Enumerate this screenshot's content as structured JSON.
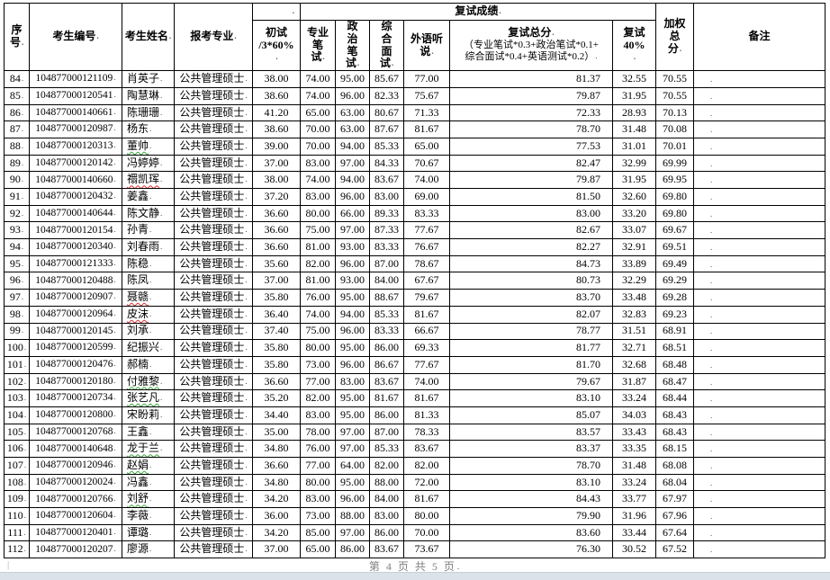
{
  "header": {
    "serial": "序号",
    "candidate_id": "考生编号",
    "candidate_name": "考生姓名",
    "major": "报考专业",
    "retest_group": "复试成绩",
    "initial_line1": "初试",
    "initial_line2": "/3*60%",
    "professional_written": "专业笔试",
    "political_written": "政治笔试",
    "comprehensive_interview": "综合面试",
    "foreign_listening": "外语听说",
    "retest_total_title": "复试总分",
    "retest_total_formula_line1": "（专业笔试*0.3+政治笔试*0.1+",
    "retest_total_formula_line2": "综合面试*0.4+英语测试*0.2）",
    "retest40_line1": "复试",
    "retest40_line2": "40%",
    "weighted_total": "加权总分",
    "remark": "备注"
  },
  "rows": [
    {
      "no": "84",
      "id": "104877000121109",
      "name": "肖英子",
      "name_underline": "",
      "major": "公共管理硕士",
      "initial": "38.00",
      "professional": "74.00",
      "political": "95.00",
      "interview": "85.67",
      "foreign": "77.00",
      "retest_total": "81.37",
      "retest40": "32.55",
      "weighted": "70.55",
      "remark": ""
    },
    {
      "no": "85",
      "id": "104877000120541",
      "name": "陶慧琳",
      "name_underline": "",
      "major": "公共管理硕士",
      "initial": "38.60",
      "professional": "74.00",
      "political": "96.00",
      "interview": "82.33",
      "foreign": "75.67",
      "retest_total": "79.87",
      "retest40": "31.95",
      "weighted": "70.55",
      "remark": ""
    },
    {
      "no": "86",
      "id": "104877000140661",
      "name": "陈珊珊",
      "name_underline": "",
      "major": "公共管理硕士",
      "initial": "41.20",
      "professional": "65.00",
      "political": "63.00",
      "interview": "80.67",
      "foreign": "71.33",
      "retest_total": "72.33",
      "retest40": "28.93",
      "weighted": "70.13",
      "remark": ""
    },
    {
      "no": "87",
      "id": "104877000120987",
      "name": "杨东",
      "name_underline": "",
      "major": "公共管理硕士",
      "initial": "38.60",
      "professional": "70.00",
      "political": "63.00",
      "interview": "87.67",
      "foreign": "81.67",
      "retest_total": "78.70",
      "retest40": "31.48",
      "weighted": "70.08",
      "remark": ""
    },
    {
      "no": "88",
      "id": "104877000120313",
      "name": "董帅",
      "name_underline": "green",
      "major": "公共管理硕士",
      "initial": "39.00",
      "professional": "70.00",
      "political": "94.00",
      "interview": "85.33",
      "foreign": "65.00",
      "retest_total": "77.53",
      "retest40": "31.01",
      "weighted": "70.01",
      "remark": ""
    },
    {
      "no": "89",
      "id": "104877000120142",
      "name": "冯婷婷",
      "name_underline": "",
      "major": "公共管理硕士",
      "initial": "37.00",
      "professional": "83.00",
      "political": "97.00",
      "interview": "84.33",
      "foreign": "70.67",
      "retest_total": "82.47",
      "retest40": "32.99",
      "weighted": "69.99",
      "remark": ""
    },
    {
      "no": "90",
      "id": "104877000140660",
      "name": "禤凯珲",
      "name_underline": "red",
      "major": "公共管理硕士",
      "initial": "38.00",
      "professional": "74.00",
      "political": "94.00",
      "interview": "83.67",
      "foreign": "74.00",
      "retest_total": "79.87",
      "retest40": "31.95",
      "weighted": "69.95",
      "remark": ""
    },
    {
      "no": "91",
      "id": "104877000120432",
      "name": "姜鑫",
      "name_underline": "",
      "major": "公共管理硕士",
      "initial": "37.20",
      "professional": "83.00",
      "political": "96.00",
      "interview": "83.00",
      "foreign": "69.00",
      "retest_total": "81.50",
      "retest40": "32.60",
      "weighted": "69.80",
      "remark": ""
    },
    {
      "no": "92",
      "id": "104877000140644",
      "name": "陈文静",
      "name_underline": "",
      "major": "公共管理硕士",
      "initial": "36.60",
      "professional": "80.00",
      "political": "66.00",
      "interview": "89.33",
      "foreign": "83.33",
      "retest_total": "83.00",
      "retest40": "33.20",
      "weighted": "69.80",
      "remark": ""
    },
    {
      "no": "93",
      "id": "104877000120154",
      "name": "孙青",
      "name_underline": "",
      "major": "公共管理硕士",
      "initial": "36.60",
      "professional": "75.00",
      "political": "97.00",
      "interview": "87.33",
      "foreign": "77.67",
      "retest_total": "82.67",
      "retest40": "33.07",
      "weighted": "69.67",
      "remark": ""
    },
    {
      "no": "94",
      "id": "104877000120340",
      "name": "刘春雨",
      "name_underline": "",
      "major": "公共管理硕士",
      "initial": "36.60",
      "professional": "81.00",
      "political": "93.00",
      "interview": "83.33",
      "foreign": "76.67",
      "retest_total": "82.27",
      "retest40": "32.91",
      "weighted": "69.51",
      "remark": ""
    },
    {
      "no": "95",
      "id": "104877000121333",
      "name": "陈稳",
      "name_underline": "",
      "major": "公共管理硕士",
      "initial": "35.60",
      "professional": "82.00",
      "political": "96.00",
      "interview": "87.00",
      "foreign": "78.67",
      "retest_total": "84.73",
      "retest40": "33.89",
      "weighted": "69.49",
      "remark": ""
    },
    {
      "no": "96",
      "id": "104877000120488",
      "name": "陈凤",
      "name_underline": "",
      "major": "公共管理硕士",
      "initial": "37.00",
      "professional": "81.00",
      "political": "93.00",
      "interview": "84.00",
      "foreign": "67.67",
      "retest_total": "80.73",
      "retest40": "32.29",
      "weighted": "69.29",
      "remark": ""
    },
    {
      "no": "97",
      "id": "104877000120907",
      "name": "聂赣",
      "name_underline": "red",
      "major": "公共管理硕士",
      "initial": "35.80",
      "professional": "76.00",
      "political": "95.00",
      "interview": "88.67",
      "foreign": "79.67",
      "retest_total": "83.70",
      "retest40": "33.48",
      "weighted": "69.28",
      "remark": ""
    },
    {
      "no": "98",
      "id": "104877000120964",
      "name": "皮沫",
      "name_underline": "red",
      "major": "公共管理硕士",
      "initial": "36.40",
      "professional": "74.00",
      "political": "94.00",
      "interview": "85.33",
      "foreign": "81.67",
      "retest_total": "82.07",
      "retest40": "32.83",
      "weighted": "69.23",
      "remark": ""
    },
    {
      "no": "99",
      "id": "104877000120145",
      "name": "刘承",
      "name_underline": "",
      "major": "公共管理硕士",
      "initial": "37.40",
      "professional": "75.00",
      "political": "96.00",
      "interview": "83.33",
      "foreign": "66.67",
      "retest_total": "78.77",
      "retest40": "31.51",
      "weighted": "68.91",
      "remark": ""
    },
    {
      "no": "100",
      "id": "104877000120599",
      "name": "纪振兴",
      "name_underline": "",
      "major": "公共管理硕士",
      "initial": "35.80",
      "professional": "80.00",
      "political": "95.00",
      "interview": "86.00",
      "foreign": "69.33",
      "retest_total": "81.77",
      "retest40": "32.71",
      "weighted": "68.51",
      "remark": ""
    },
    {
      "no": "101",
      "id": "104877000120476",
      "name": "郝楠",
      "name_underline": "",
      "major": "公共管理硕士",
      "initial": "35.80",
      "professional": "73.00",
      "political": "96.00",
      "interview": "86.67",
      "foreign": "77.67",
      "retest_total": "81.70",
      "retest40": "32.68",
      "weighted": "68.48",
      "remark": ""
    },
    {
      "no": "102",
      "id": "104877000120180",
      "name": "付雅黎",
      "name_underline": "green",
      "major": "公共管理硕士",
      "initial": "36.60",
      "professional": "77.00",
      "political": "83.00",
      "interview": "83.67",
      "foreign": "74.00",
      "retest_total": "79.67",
      "retest40": "31.87",
      "weighted": "68.47",
      "remark": ""
    },
    {
      "no": "103",
      "id": "104877000120734",
      "name": "张艺凡",
      "name_underline": "green",
      "major": "公共管理硕士",
      "initial": "35.20",
      "professional": "82.00",
      "political": "95.00",
      "interview": "81.67",
      "foreign": "81.67",
      "retest_total": "83.10",
      "retest40": "33.24",
      "weighted": "68.44",
      "remark": ""
    },
    {
      "no": "104",
      "id": "104877000120800",
      "name": "宋盼莉",
      "name_underline": "",
      "major": "公共管理硕士",
      "initial": "34.40",
      "professional": "83.00",
      "political": "95.00",
      "interview": "86.00",
      "foreign": "81.33",
      "retest_total": "85.07",
      "retest40": "34.03",
      "weighted": "68.43",
      "remark": ""
    },
    {
      "no": "105",
      "id": "104877000120768",
      "name": "王鑫",
      "name_underline": "",
      "major": "公共管理硕士",
      "initial": "35.00",
      "professional": "78.00",
      "political": "97.00",
      "interview": "87.00",
      "foreign": "78.33",
      "retest_total": "83.57",
      "retest40": "33.43",
      "weighted": "68.43",
      "remark": ""
    },
    {
      "no": "106",
      "id": "104877000140648",
      "name": "龙于兰",
      "name_underline": "green",
      "major": "公共管理硕士",
      "initial": "34.80",
      "professional": "76.00",
      "political": "97.00",
      "interview": "85.33",
      "foreign": "83.67",
      "retest_total": "83.37",
      "retest40": "33.35",
      "weighted": "68.15",
      "remark": ""
    },
    {
      "no": "107",
      "id": "104877000120946",
      "name": "赵娟",
      "name_underline": "green",
      "major": "公共管理硕士",
      "initial": "36.60",
      "professional": "77.00",
      "political": "64.00",
      "interview": "82.00",
      "foreign": "82.00",
      "retest_total": "78.70",
      "retest40": "31.48",
      "weighted": "68.08",
      "remark": ""
    },
    {
      "no": "108",
      "id": "104877000120024",
      "name": "冯鑫",
      "name_underline": "",
      "major": "公共管理硕士",
      "initial": "34.80",
      "professional": "80.00",
      "political": "95.00",
      "interview": "88.00",
      "foreign": "72.00",
      "retest_total": "83.10",
      "retest40": "33.24",
      "weighted": "68.04",
      "remark": ""
    },
    {
      "no": "109",
      "id": "104877000120766",
      "name": "刘舒",
      "name_underline": "green",
      "major": "公共管理硕士",
      "initial": "34.20",
      "professional": "83.00",
      "political": "96.00",
      "interview": "84.00",
      "foreign": "81.67",
      "retest_total": "84.43",
      "retest40": "33.77",
      "weighted": "67.97",
      "remark": ""
    },
    {
      "no": "110",
      "id": "104877000120604",
      "name": "李薇",
      "name_underline": "",
      "major": "公共管理硕士",
      "initial": "36.00",
      "professional": "73.00",
      "political": "88.00",
      "interview": "83.00",
      "foreign": "80.00",
      "retest_total": "79.90",
      "retest40": "31.96",
      "weighted": "67.96",
      "remark": ""
    },
    {
      "no": "111",
      "id": "104877000120401",
      "name": "谭璐",
      "name_underline": "",
      "major": "公共管理硕士",
      "initial": "34.20",
      "professional": "85.00",
      "political": "97.00",
      "interview": "86.00",
      "foreign": "70.00",
      "retest_total": "83.60",
      "retest40": "33.44",
      "weighted": "67.64",
      "remark": ""
    },
    {
      "no": "112",
      "id": "104877000120207",
      "name": "廖源",
      "name_underline": "",
      "major": "公共管理硕士",
      "initial": "37.00",
      "professional": "65.00",
      "political": "86.00",
      "interview": "83.67",
      "foreign": "73.67",
      "retest_total": "76.30",
      "retest40": "30.52",
      "weighted": "67.52",
      "remark": ""
    }
  ],
  "footer": {
    "page_text": "第 4 页 共 5 页"
  },
  "colors": {
    "border": "#000000",
    "footer_text": "#808080",
    "spellcheck_red": "#e03030",
    "grammar_green": "#3aa53a",
    "bottom_band": "#dbe2ea"
  }
}
